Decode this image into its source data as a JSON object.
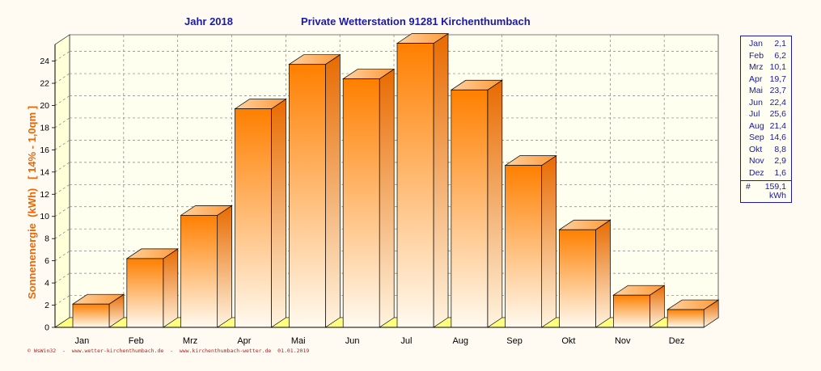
{
  "header": {
    "year_label": "Jahr  2018",
    "station": "Private Wetterstation 91281 Kirchenthumbach"
  },
  "footer": "© WsWin32  -  www.wetter-kirchenthumbach.de  -  www.kirchenthumbach-wetter.de  01.01.2019",
  "legend": {
    "total_symbol": "#",
    "total_value": "159,1",
    "total_unit": "kWh",
    "rows": [
      {
        "month": "Jan",
        "value": "2,1"
      },
      {
        "month": "Feb",
        "value": "6,2"
      },
      {
        "month": "Mrz",
        "value": "10,1"
      },
      {
        "month": "Apr",
        "value": "19,7"
      },
      {
        "month": "Mai",
        "value": "23,7"
      },
      {
        "month": "Jun",
        "value": "22,4"
      },
      {
        "month": "Jul",
        "value": "25,6"
      },
      {
        "month": "Aug",
        "value": "21,4"
      },
      {
        "month": "Sep",
        "value": "14,6"
      },
      {
        "month": "Okt",
        "value": "8,8"
      },
      {
        "month": "Nov",
        "value": "2,9"
      },
      {
        "month": "Dez",
        "value": "1,6"
      }
    ]
  },
  "colors": {
    "title": "#1a1aa6",
    "axis_label": "#ee6600",
    "bar_top": "#ff7f00",
    "bar_bottom": "#fffaf0",
    "floor": "#ffff80",
    "grid": "#808080"
  },
  "chart_data": {
    "type": "bar",
    "title": "Private Wetterstation 91281 Kirchenthumbach",
    "xlabel": "",
    "ylabel": "Sonnenenergie  (kWh)   [ 14% - 1,0qm ]",
    "ylim": [
      0,
      25.5
    ],
    "yticks": [
      0,
      2,
      4,
      6,
      8,
      10,
      12,
      14,
      16,
      18,
      20,
      22,
      24
    ],
    "categories": [
      "Jan",
      "Feb",
      "Mrz",
      "Apr",
      "Mai",
      "Jun",
      "Jul",
      "Aug",
      "Sep",
      "Okt",
      "Nov",
      "Dez"
    ],
    "series": [
      {
        "values": [
          2.1,
          6.2,
          10.1,
          19.7,
          23.7,
          22.4,
          25.6,
          21.4,
          14.6,
          8.8,
          2.9,
          1.6
        ]
      }
    ],
    "grid": true,
    "legend": "right"
  }
}
